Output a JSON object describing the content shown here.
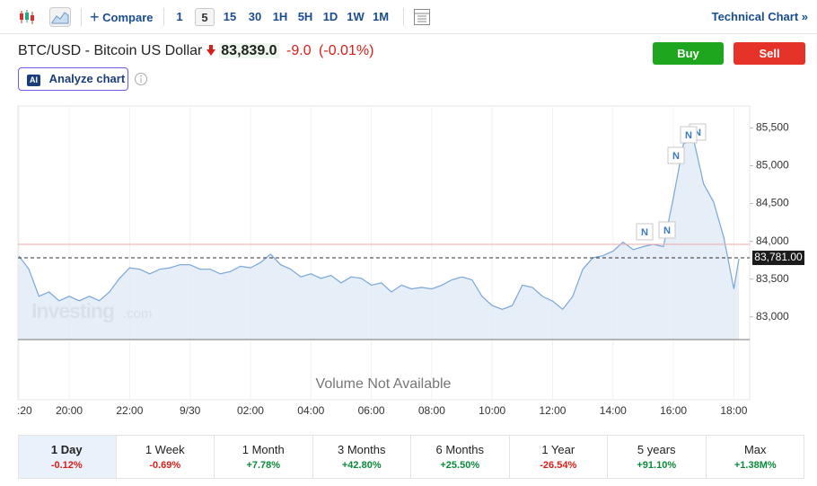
{
  "toolbar": {
    "compare": "Compare",
    "intervals": [
      "1",
      "5",
      "15",
      "30",
      "1H",
      "5H",
      "1D",
      "1W",
      "1M"
    ],
    "selected_interval": "5",
    "technical_chart": "Technical Chart »"
  },
  "header": {
    "title": "BTC/USD - Bitcoin US Dollar",
    "price": "83,839.0",
    "change": "-9.0",
    "change_percent": "(-0.01%)",
    "buy": "Buy",
    "sell": "Sell",
    "ai_badge": "AI",
    "analyze": "Analyze chart"
  },
  "chart_data": {
    "type": "area",
    "watermark": "Investing",
    "watermark_suffix": ".com",
    "volume_note": "Volume Not Available",
    "color": "#7aa7d9",
    "x": [
      "18:20",
      "18:40",
      "19:00",
      "19:20",
      "19:40",
      "20:00",
      "20:20",
      "20:40",
      "21:00",
      "21:20",
      "21:40",
      "22:00",
      "22:20",
      "22:40",
      "23:00",
      "23:20",
      "23:40",
      "00:00",
      "00:20",
      "00:40",
      "01:00",
      "01:20",
      "01:40",
      "02:00",
      "02:20",
      "02:40",
      "03:00",
      "03:20",
      "03:40",
      "04:00",
      "04:20",
      "04:40",
      "05:00",
      "05:20",
      "05:40",
      "06:00",
      "06:20",
      "06:40",
      "07:00",
      "07:20",
      "07:40",
      "08:00",
      "08:20",
      "08:40",
      "09:00",
      "09:20",
      "09:40",
      "10:00",
      "10:20",
      "10:40",
      "11:00",
      "11:20",
      "11:40",
      "12:00",
      "12:20",
      "12:40",
      "13:00",
      "13:20",
      "13:40",
      "14:00",
      "14:20",
      "14:40",
      "15:00",
      "15:20",
      "15:40",
      "16:00",
      "16:20",
      "16:40",
      "17:00",
      "17:20",
      "17:40",
      "18:00",
      "18:10"
    ],
    "values": [
      83808,
      83630,
      83273,
      83330,
      83214,
      83273,
      83214,
      83273,
      83214,
      83330,
      83510,
      83650,
      83630,
      83570,
      83630,
      83650,
      83690,
      83690,
      83630,
      83630,
      83570,
      83600,
      83670,
      83650,
      83720,
      83830,
      83690,
      83630,
      83530,
      83570,
      83510,
      83550,
      83450,
      83530,
      83510,
      83420,
      83450,
      83330,
      83420,
      83370,
      83390,
      83370,
      83420,
      83490,
      83530,
      83490,
      83270,
      83150,
      83100,
      83150,
      83420,
      83390,
      83270,
      83210,
      83100,
      83270,
      83630,
      83780,
      83810,
      83870,
      83990,
      83890,
      83930,
      83960,
      83930,
      84580,
      85290,
      85350,
      84760,
      84520,
      84050,
      83370,
      83770
    ],
    "ylim": [
      82700,
      85790
    ],
    "yticks": [
      {
        "value": 83000,
        "label": "83,000"
      },
      {
        "value": 83500,
        "label": "83,500"
      },
      {
        "value": 84000,
        "label": "84,000"
      },
      {
        "value": 84500,
        "label": "84,500"
      },
      {
        "value": 85000,
        "label": "85,000"
      },
      {
        "value": 85500,
        "label": "85,500"
      }
    ],
    "xticks": [
      {
        "value": "18:20",
        "label": ":20"
      },
      "20:00",
      "22:00",
      {
        "value": "00:00",
        "label": "9/30"
      },
      "02:00",
      "04:00",
      "06:00",
      "08:00",
      "10:00",
      "12:00",
      "14:00",
      "16:00",
      "18:00"
    ],
    "reference_line": 83960,
    "current_price": {
      "value": 83781,
      "label": "83,781.00"
    },
    "news_markers": [
      "N",
      "N",
      "N",
      "N",
      "N"
    ]
  },
  "periods": [
    {
      "name": "1 Day",
      "change": "-0.12%"
    },
    {
      "name": "1 Week",
      "change": "-0.69%"
    },
    {
      "name": "1 Month",
      "change": "+7.78%"
    },
    {
      "name": "3 Months",
      "change": "+42.80%"
    },
    {
      "name": "6 Months",
      "change": "+25.50%"
    },
    {
      "name": "1 Year",
      "change": "-26.54%"
    },
    {
      "name": "5 years",
      "change": "+91.10%"
    },
    {
      "name": "Max",
      "change": "+1.38M%"
    }
  ],
  "selected_period": "1 Day"
}
